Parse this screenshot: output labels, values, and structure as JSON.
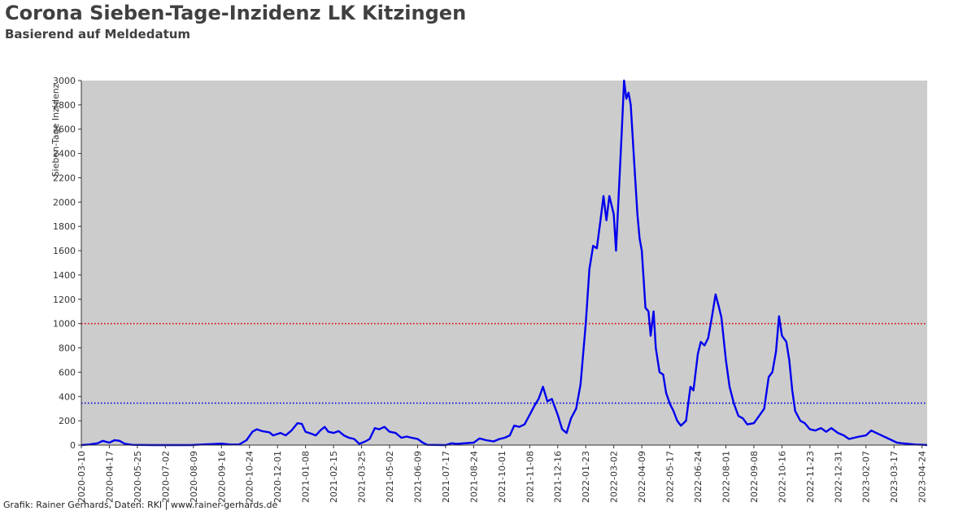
{
  "title": "Corona Sieben-Tage-Inzidenz LK Kitzingen",
  "subtitle": "Basierend auf Meldedatum",
  "credit": "Grafik: Rainer Gerhards, Daten: RKI | www.rainer-gerhards.de",
  "chart_data": {
    "type": "line",
    "ylabel": "Sieben-Tage Inzidenz",
    "ylim": [
      0,
      3000
    ],
    "yticks": [
      0,
      200,
      400,
      600,
      800,
      1000,
      1200,
      1400,
      1600,
      1800,
      2000,
      2200,
      2400,
      2600,
      2800,
      3000
    ],
    "xlim": [
      "2020-03-10",
      "2023-05-01"
    ],
    "xticks": [
      "2020-03-10",
      "2020-04-17",
      "2020-05-25",
      "2020-07-02",
      "2020-08-09",
      "2020-09-16",
      "2020-10-24",
      "2020-12-01",
      "2021-01-08",
      "2021-02-15",
      "2021-03-25",
      "2021-05-02",
      "2021-06-09",
      "2021-07-17",
      "2021-08-24",
      "2021-10-01",
      "2021-11-08",
      "2021-12-16",
      "2022-01-23",
      "2022-03-02",
      "2022-04-09",
      "2022-05-17",
      "2022-06-24",
      "2022-08-01",
      "2022-09-08",
      "2022-10-16",
      "2022-11-23",
      "2022-12-31",
      "2023-02-07",
      "2023-03-17",
      "2023-04-24"
    ],
    "background": "#cccccc",
    "grid": false,
    "reference_lines": [
      {
        "y": 1000,
        "color": "#dd0000",
        "style": "dotted"
      },
      {
        "y": 345,
        "color": "#0000dd",
        "style": "dotted"
      }
    ],
    "series": [
      {
        "color": "#0000ee",
        "points": [
          [
            "2020-03-10",
            0
          ],
          [
            "2020-03-20",
            5
          ],
          [
            "2020-04-01",
            15
          ],
          [
            "2020-04-08",
            35
          ],
          [
            "2020-04-17",
            20
          ],
          [
            "2020-04-24",
            40
          ],
          [
            "2020-05-01",
            35
          ],
          [
            "2020-05-08",
            10
          ],
          [
            "2020-05-18",
            2
          ],
          [
            "2020-06-15",
            0
          ],
          [
            "2020-08-05",
            0
          ],
          [
            "2020-08-20",
            5
          ],
          [
            "2020-09-16",
            12
          ],
          [
            "2020-09-28",
            5
          ],
          [
            "2020-10-10",
            5
          ],
          [
            "2020-10-20",
            40
          ],
          [
            "2020-10-28",
            110
          ],
          [
            "2020-11-03",
            130
          ],
          [
            "2020-11-10",
            115
          ],
          [
            "2020-11-20",
            105
          ],
          [
            "2020-11-25",
            80
          ],
          [
            "2020-12-05",
            100
          ],
          [
            "2020-12-12",
            80
          ],
          [
            "2020-12-20",
            120
          ],
          [
            "2020-12-28",
            180
          ],
          [
            "2021-01-03",
            175
          ],
          [
            "2021-01-08",
            110
          ],
          [
            "2021-01-15",
            95
          ],
          [
            "2021-01-22",
            80
          ],
          [
            "2021-01-28",
            120
          ],
          [
            "2021-02-03",
            150
          ],
          [
            "2021-02-08",
            110
          ],
          [
            "2021-02-15",
            100
          ],
          [
            "2021-02-22",
            115
          ],
          [
            "2021-03-01",
            80
          ],
          [
            "2021-03-08",
            60
          ],
          [
            "2021-03-15",
            50
          ],
          [
            "2021-03-22",
            10
          ],
          [
            "2021-03-30",
            30
          ],
          [
            "2021-04-05",
            50
          ],
          [
            "2021-04-12",
            140
          ],
          [
            "2021-04-18",
            130
          ],
          [
            "2021-04-25",
            150
          ],
          [
            "2021-05-02",
            110
          ],
          [
            "2021-05-10",
            100
          ],
          [
            "2021-05-18",
            60
          ],
          [
            "2021-05-25",
            70
          ],
          [
            "2021-06-01",
            60
          ],
          [
            "2021-06-09",
            50
          ],
          [
            "2021-06-16",
            20
          ],
          [
            "2021-06-22",
            2
          ],
          [
            "2021-07-17",
            0
          ],
          [
            "2021-07-25",
            15
          ],
          [
            "2021-08-01",
            10
          ],
          [
            "2021-08-24",
            20
          ],
          [
            "2021-09-01",
            55
          ],
          [
            "2021-09-10",
            40
          ],
          [
            "2021-09-20",
            30
          ],
          [
            "2021-09-28",
            50
          ],
          [
            "2021-10-05",
            60
          ],
          [
            "2021-10-12",
            80
          ],
          [
            "2021-10-18",
            160
          ],
          [
            "2021-10-25",
            150
          ],
          [
            "2021-11-01",
            170
          ],
          [
            "2021-11-08",
            250
          ],
          [
            "2021-11-15",
            330
          ],
          [
            "2021-11-20",
            380
          ],
          [
            "2021-11-26",
            480
          ],
          [
            "2021-12-02",
            360
          ],
          [
            "2021-12-08",
            380
          ],
          [
            "2021-12-16",
            250
          ],
          [
            "2021-12-22",
            130
          ],
          [
            "2021-12-28",
            100
          ],
          [
            "2022-01-03",
            220
          ],
          [
            "2022-01-10",
            300
          ],
          [
            "2022-01-16",
            500
          ],
          [
            "2022-01-23",
            1000
          ],
          [
            "2022-01-28",
            1450
          ],
          [
            "2022-02-02",
            1640
          ],
          [
            "2022-02-07",
            1620
          ],
          [
            "2022-02-12",
            1850
          ],
          [
            "2022-02-16",
            2050
          ],
          [
            "2022-02-20",
            1850
          ],
          [
            "2022-02-24",
            2050
          ],
          [
            "2022-03-02",
            1900
          ],
          [
            "2022-03-05",
            1600
          ],
          [
            "2022-03-09",
            2100
          ],
          [
            "2022-03-13",
            2600
          ],
          [
            "2022-03-16",
            3000
          ],
          [
            "2022-03-19",
            2850
          ],
          [
            "2022-03-22",
            2900
          ],
          [
            "2022-03-25",
            2800
          ],
          [
            "2022-03-30",
            2300
          ],
          [
            "2022-04-03",
            1900
          ],
          [
            "2022-04-06",
            1700
          ],
          [
            "2022-04-09",
            1600
          ],
          [
            "2022-04-14",
            1130
          ],
          [
            "2022-04-18",
            1100
          ],
          [
            "2022-04-21",
            900
          ],
          [
            "2022-04-25",
            1100
          ],
          [
            "2022-04-28",
            800
          ],
          [
            "2022-05-03",
            600
          ],
          [
            "2022-05-08",
            580
          ],
          [
            "2022-05-12",
            430
          ],
          [
            "2022-05-17",
            340
          ],
          [
            "2022-05-22",
            280
          ],
          [
            "2022-05-27",
            200
          ],
          [
            "2022-06-01",
            160
          ],
          [
            "2022-06-08",
            200
          ],
          [
            "2022-06-14",
            480
          ],
          [
            "2022-06-18",
            450
          ],
          [
            "2022-06-24",
            750
          ],
          [
            "2022-06-28",
            850
          ],
          [
            "2022-07-03",
            820
          ],
          [
            "2022-07-08",
            880
          ],
          [
            "2022-07-13",
            1050
          ],
          [
            "2022-07-18",
            1240
          ],
          [
            "2022-07-22",
            1150
          ],
          [
            "2022-07-26",
            1050
          ],
          [
            "2022-08-01",
            700
          ],
          [
            "2022-08-06",
            480
          ],
          [
            "2022-08-12",
            340
          ],
          [
            "2022-08-18",
            240
          ],
          [
            "2022-08-24",
            220
          ],
          [
            "2022-08-30",
            170
          ],
          [
            "2022-09-08",
            180
          ],
          [
            "2022-09-15",
            240
          ],
          [
            "2022-09-22",
            300
          ],
          [
            "2022-09-28",
            560
          ],
          [
            "2022-10-03",
            600
          ],
          [
            "2022-10-08",
            770
          ],
          [
            "2022-10-12",
            1060
          ],
          [
            "2022-10-16",
            900
          ],
          [
            "2022-10-22",
            850
          ],
          [
            "2022-10-26",
            700
          ],
          [
            "2022-10-30",
            450
          ],
          [
            "2022-11-03",
            280
          ],
          [
            "2022-11-10",
            200
          ],
          [
            "2022-11-16",
            180
          ],
          [
            "2022-11-23",
            130
          ],
          [
            "2022-11-30",
            120
          ],
          [
            "2022-12-08",
            140
          ],
          [
            "2022-12-15",
            110
          ],
          [
            "2022-12-22",
            140
          ],
          [
            "2022-12-31",
            100
          ],
          [
            "2023-01-08",
            80
          ],
          [
            "2023-01-15",
            50
          ],
          [
            "2023-01-22",
            60
          ],
          [
            "2023-01-29",
            70
          ],
          [
            "2023-02-07",
            80
          ],
          [
            "2023-02-14",
            120
          ],
          [
            "2023-02-21",
            100
          ],
          [
            "2023-02-28",
            80
          ],
          [
            "2023-03-07",
            60
          ],
          [
            "2023-03-14",
            40
          ],
          [
            "2023-03-21",
            20
          ],
          [
            "2023-03-28",
            15
          ],
          [
            "2023-04-05",
            10
          ],
          [
            "2023-04-15",
            5
          ],
          [
            "2023-04-24",
            3
          ],
          [
            "2023-05-01",
            0
          ]
        ]
      }
    ]
  }
}
